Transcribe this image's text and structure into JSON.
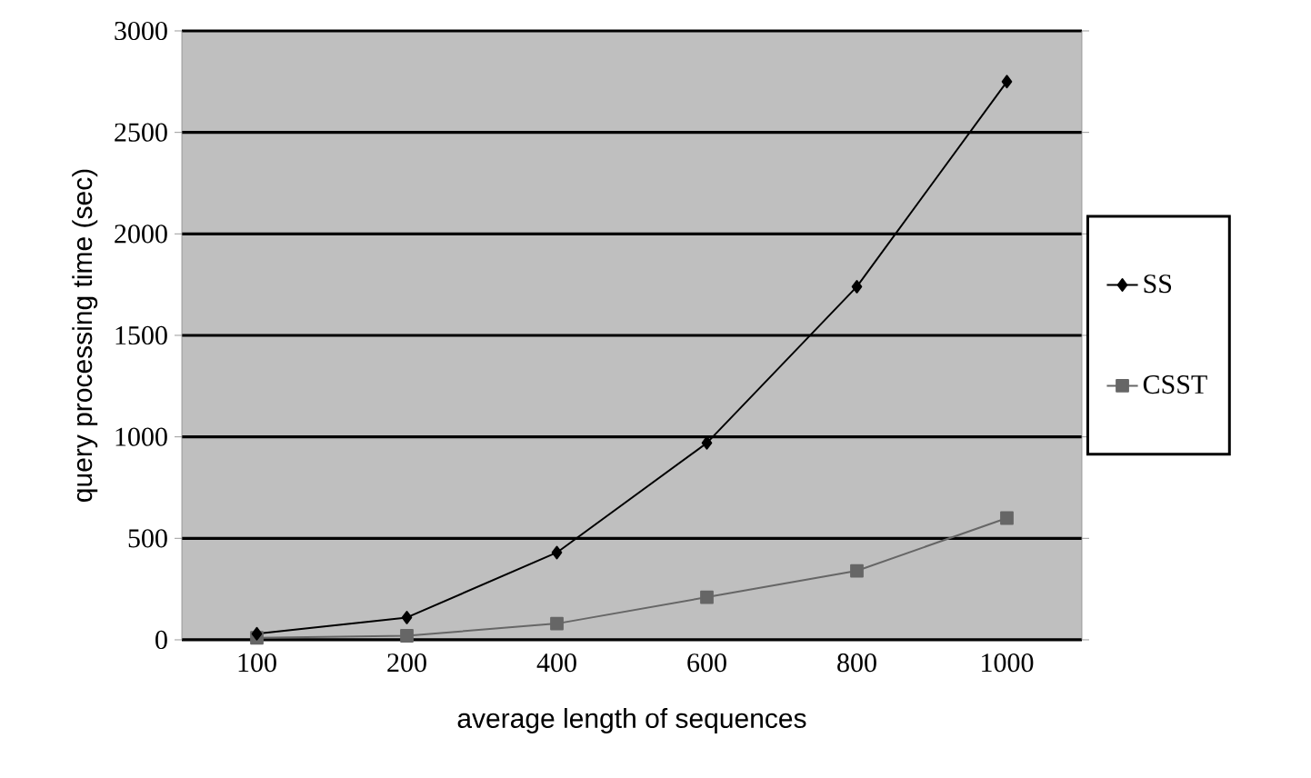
{
  "chart_data": {
    "type": "line",
    "xlabel": "average length of sequences",
    "ylabel": "query processing time (sec)",
    "categories": [
      "100",
      "200",
      "400",
      "600",
      "800",
      "1000"
    ],
    "series": [
      {
        "name": "SS",
        "color": "#000000",
        "marker": "diamond",
        "values": [
          30,
          110,
          430,
          970,
          1740,
          2750
        ]
      },
      {
        "name": "CSST",
        "color": "#666666",
        "marker": "square",
        "values": [
          10,
          20,
          80,
          210,
          340,
          600
        ]
      }
    ],
    "ylim": [
      0,
      3000
    ],
    "yticks": [
      0,
      500,
      1000,
      1500,
      2000,
      2500,
      3000
    ],
    "grid": "y",
    "legend": "right"
  }
}
